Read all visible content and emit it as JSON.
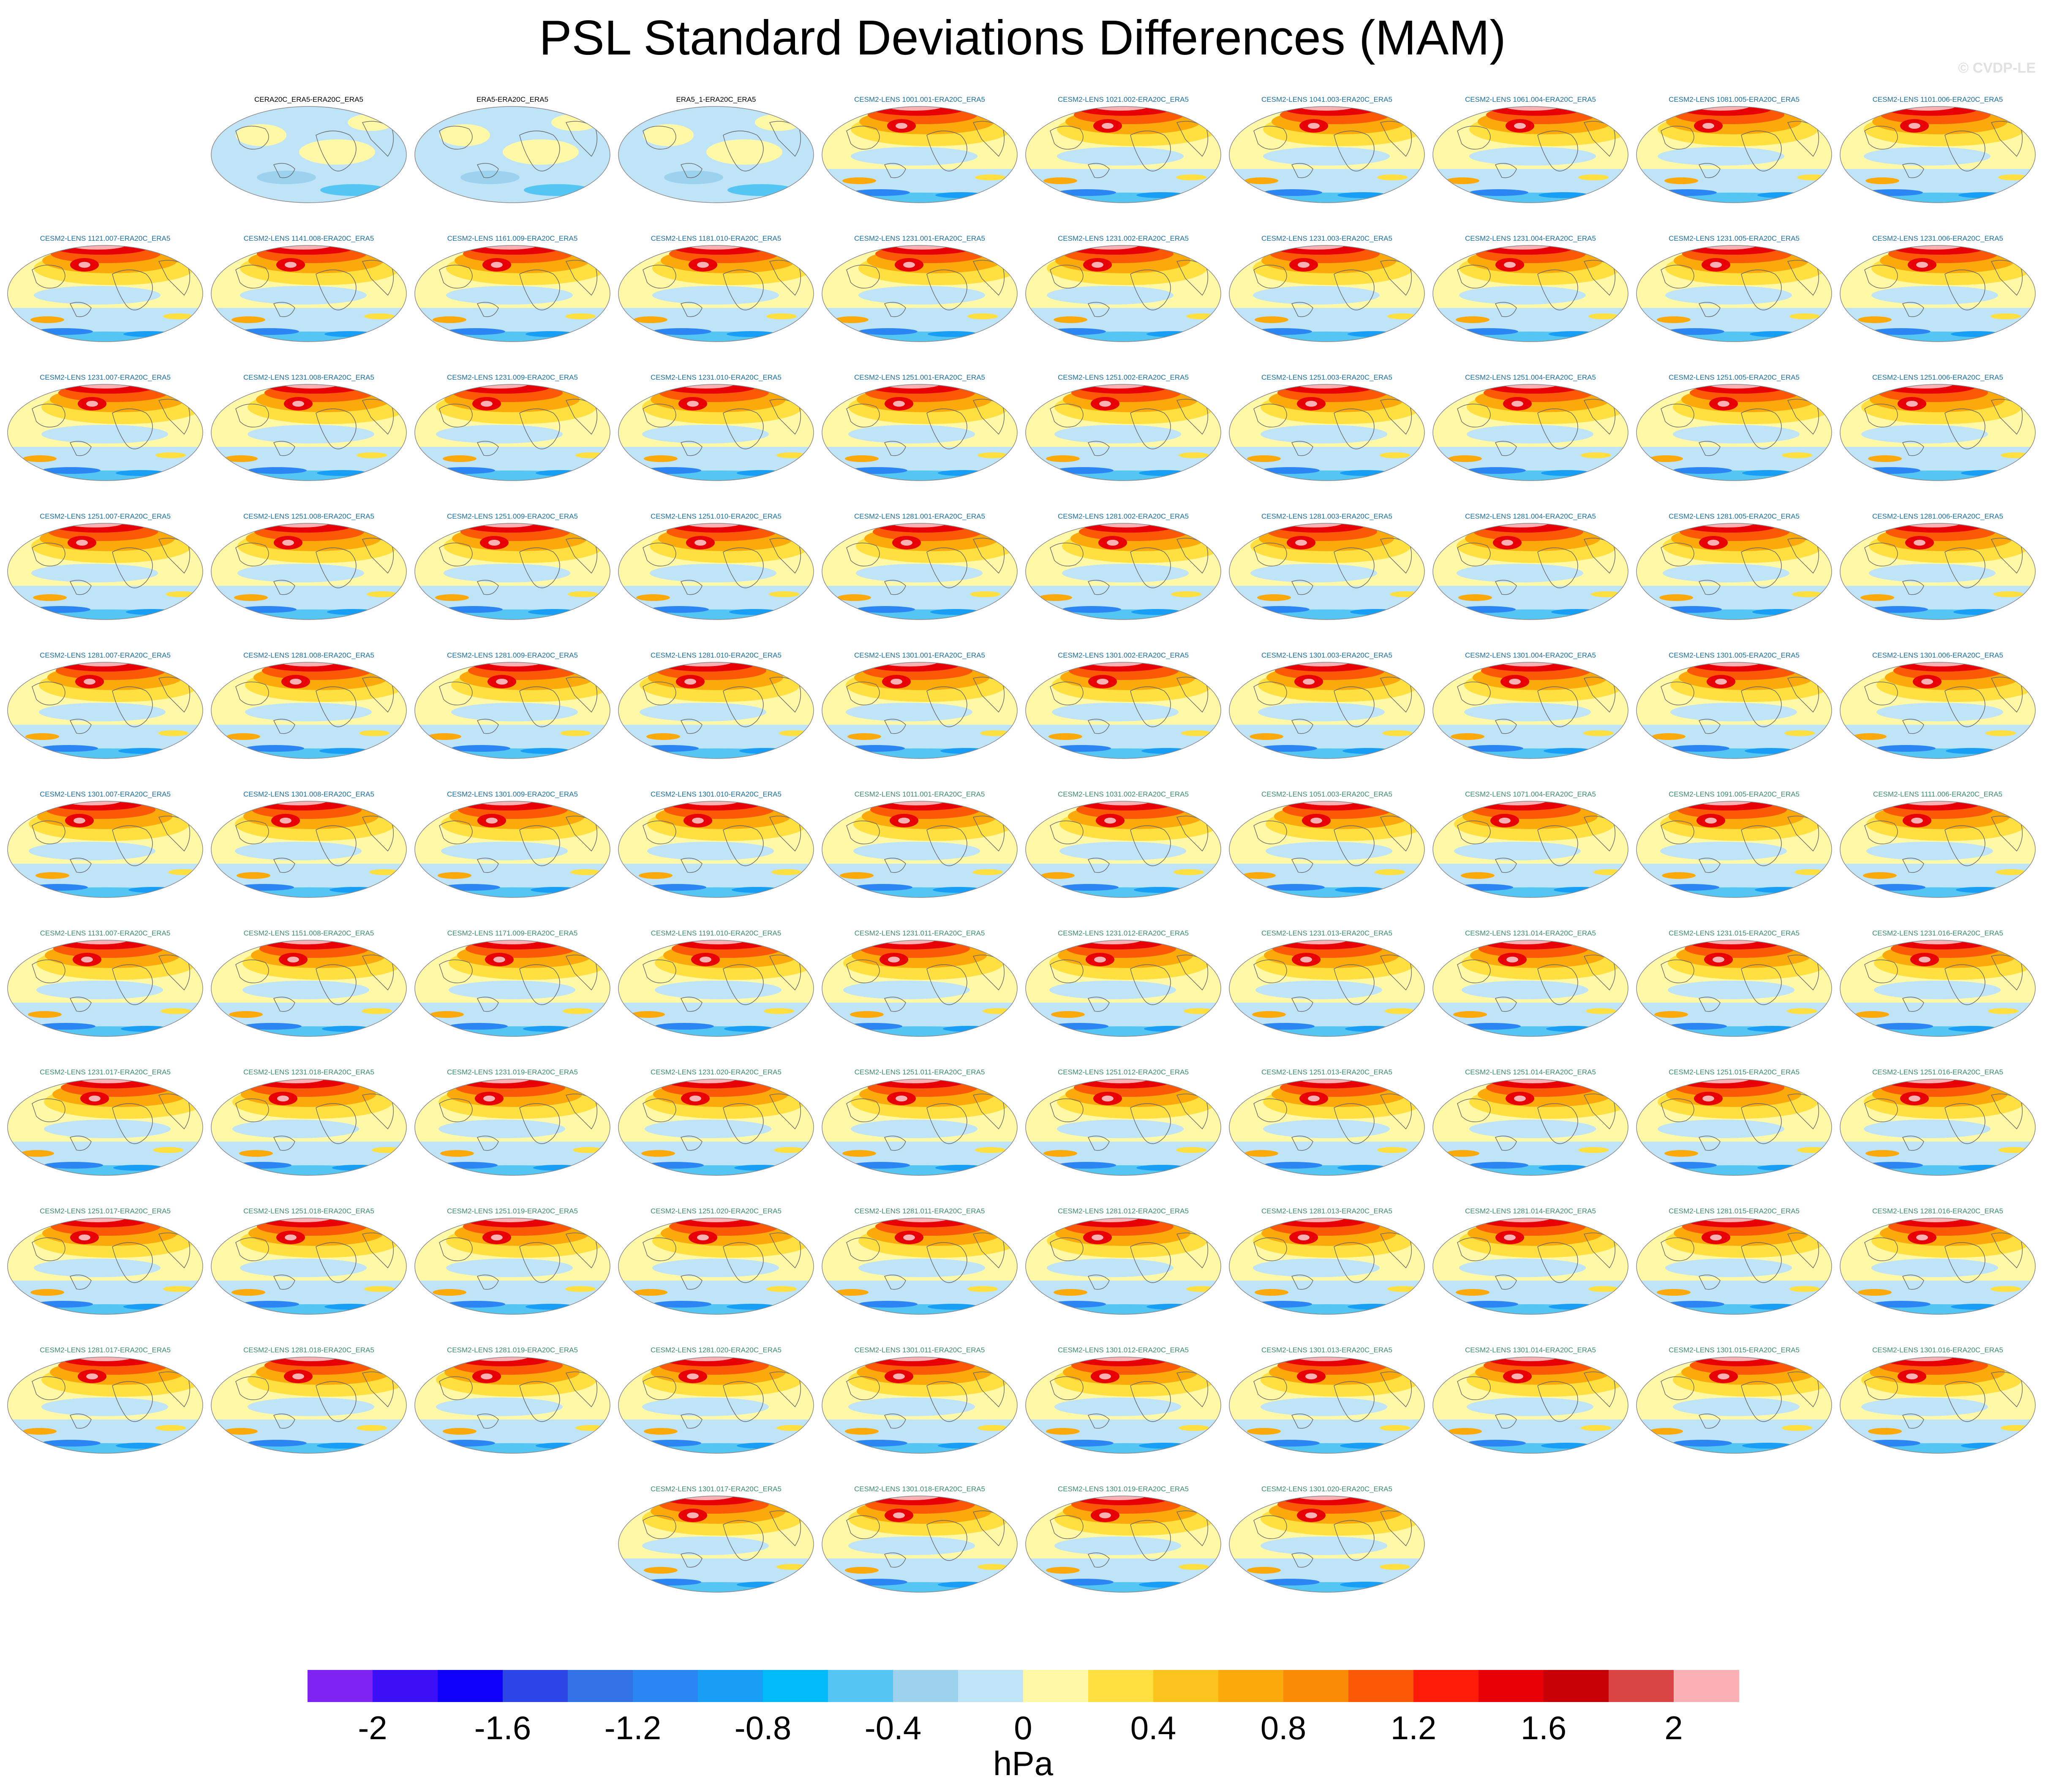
{
  "title": "PSL Standard Deviations Differences (MAM)",
  "watermark": "© CVDP-LE",
  "units": "hPa",
  "colorbar": {
    "colors": [
      "#7f23f2",
      "#3c0ff6",
      "#0e00fb",
      "#2c45e6",
      "#3271e6",
      "#2b86f3",
      "#199ef6",
      "#00baf9",
      "#55c6f4",
      "#9dd2ee",
      "#bfe3f7",
      "#fff8a6",
      "#ffe040",
      "#fdc420",
      "#fba90b",
      "#f98b07",
      "#fc5907",
      "#fe1c08",
      "#e70006",
      "#c70006",
      "#d94545",
      "#fbb1b3"
    ],
    "tick_labels": [
      "-2",
      "-1.6",
      "-1.2",
      "-0.8",
      "-0.4",
      "0",
      "0.4",
      "0.8",
      "1.2",
      "1.6",
      "2"
    ]
  },
  "panels": [
    {
      "label": "CERA20C_ERA5-ERA20C_ERA5",
      "group": "obs"
    },
    {
      "label": "ERA5-ERA20C_ERA5",
      "group": "obs"
    },
    {
      "label": "ERA5_1-ERA20C_ERA5",
      "group": "obs"
    },
    {
      "label": "CESM2-LENS 1001.001-ERA20C_ERA5",
      "group": "a"
    },
    {
      "label": "CESM2-LENS 1021.002-ERA20C_ERA5",
      "group": "a"
    },
    {
      "label": "CESM2-LENS 1041.003-ERA20C_ERA5",
      "group": "a"
    },
    {
      "label": "CESM2-LENS 1061.004-ERA20C_ERA5",
      "group": "a"
    },
    {
      "label": "CESM2-LENS 1081.005-ERA20C_ERA5",
      "group": "a"
    },
    {
      "label": "CESM2-LENS 1101.006-ERA20C_ERA5",
      "group": "a"
    },
    {
      "label": "CESM2-LENS 1121.007-ERA20C_ERA5",
      "group": "a"
    },
    {
      "label": "CESM2-LENS 1141.008-ERA20C_ERA5",
      "group": "a"
    },
    {
      "label": "CESM2-LENS 1161.009-ERA20C_ERA5",
      "group": "a"
    },
    {
      "label": "CESM2-LENS 1181.010-ERA20C_ERA5",
      "group": "a"
    },
    {
      "label": "CESM2-LENS 1231.001-ERA20C_ERA5",
      "group": "a"
    },
    {
      "label": "CESM2-LENS 1231.002-ERA20C_ERA5",
      "group": "a"
    },
    {
      "label": "CESM2-LENS 1231.003-ERA20C_ERA5",
      "group": "a"
    },
    {
      "label": "CESM2-LENS 1231.004-ERA20C_ERA5",
      "group": "a"
    },
    {
      "label": "CESM2-LENS 1231.005-ERA20C_ERA5",
      "group": "a"
    },
    {
      "label": "CESM2-LENS 1231.006-ERA20C_ERA5",
      "group": "a"
    },
    {
      "label": "CESM2-LENS 1231.007-ERA20C_ERA5",
      "group": "a"
    },
    {
      "label": "CESM2-LENS 1231.008-ERA20C_ERA5",
      "group": "a"
    },
    {
      "label": "CESM2-LENS 1231.009-ERA20C_ERA5",
      "group": "a"
    },
    {
      "label": "CESM2-LENS 1231.010-ERA20C_ERA5",
      "group": "a"
    },
    {
      "label": "CESM2-LENS 1251.001-ERA20C_ERA5",
      "group": "a"
    },
    {
      "label": "CESM2-LENS 1251.002-ERA20C_ERA5",
      "group": "a"
    },
    {
      "label": "CESM2-LENS 1251.003-ERA20C_ERA5",
      "group": "a"
    },
    {
      "label": "CESM2-LENS 1251.004-ERA20C_ERA5",
      "group": "a"
    },
    {
      "label": "CESM2-LENS 1251.005-ERA20C_ERA5",
      "group": "a"
    },
    {
      "label": "CESM2-LENS 1251.006-ERA20C_ERA5",
      "group": "a"
    },
    {
      "label": "CESM2-LENS 1251.007-ERA20C_ERA5",
      "group": "a"
    },
    {
      "label": "CESM2-LENS 1251.008-ERA20C_ERA5",
      "group": "a"
    },
    {
      "label": "CESM2-LENS 1251.009-ERA20C_ERA5",
      "group": "a"
    },
    {
      "label": "CESM2-LENS 1251.010-ERA20C_ERA5",
      "group": "a"
    },
    {
      "label": "CESM2-LENS 1281.001-ERA20C_ERA5",
      "group": "a"
    },
    {
      "label": "CESM2-LENS 1281.002-ERA20C_ERA5",
      "group": "a"
    },
    {
      "label": "CESM2-LENS 1281.003-ERA20C_ERA5",
      "group": "a"
    },
    {
      "label": "CESM2-LENS 1281.004-ERA20C_ERA5",
      "group": "a"
    },
    {
      "label": "CESM2-LENS 1281.005-ERA20C_ERA5",
      "group": "a"
    },
    {
      "label": "CESM2-LENS 1281.006-ERA20C_ERA5",
      "group": "a"
    },
    {
      "label": "CESM2-LENS 1281.007-ERA20C_ERA5",
      "group": "a"
    },
    {
      "label": "CESM2-LENS 1281.008-ERA20C_ERA5",
      "group": "a"
    },
    {
      "label": "CESM2-LENS 1281.009-ERA20C_ERA5",
      "group": "a"
    },
    {
      "label": "CESM2-LENS 1281.010-ERA20C_ERA5",
      "group": "a"
    },
    {
      "label": "CESM2-LENS 1301.001-ERA20C_ERA5",
      "group": "a"
    },
    {
      "label": "CESM2-LENS 1301.002-ERA20C_ERA5",
      "group": "a"
    },
    {
      "label": "CESM2-LENS 1301.003-ERA20C_ERA5",
      "group": "a"
    },
    {
      "label": "CESM2-LENS 1301.004-ERA20C_ERA5",
      "group": "a"
    },
    {
      "label": "CESM2-LENS 1301.005-ERA20C_ERA5",
      "group": "a"
    },
    {
      "label": "CESM2-LENS 1301.006-ERA20C_ERA5",
      "group": "a"
    },
    {
      "label": "CESM2-LENS 1301.007-ERA20C_ERA5",
      "group": "a"
    },
    {
      "label": "CESM2-LENS 1301.008-ERA20C_ERA5",
      "group": "a"
    },
    {
      "label": "CESM2-LENS 1301.009-ERA20C_ERA5",
      "group": "a"
    },
    {
      "label": "CESM2-LENS 1301.010-ERA20C_ERA5",
      "group": "a"
    },
    {
      "label": "CESM2-LENS 1011.001-ERA20C_ERA5",
      "group": "b"
    },
    {
      "label": "CESM2-LENS 1031.002-ERA20C_ERA5",
      "group": "b"
    },
    {
      "label": "CESM2-LENS 1051.003-ERA20C_ERA5",
      "group": "b"
    },
    {
      "label": "CESM2-LENS 1071.004-ERA20C_ERA5",
      "group": "b"
    },
    {
      "label": "CESM2-LENS 1091.005-ERA20C_ERA5",
      "group": "b"
    },
    {
      "label": "CESM2-LENS 1111.006-ERA20C_ERA5",
      "group": "b"
    },
    {
      "label": "CESM2-LENS 1131.007-ERA20C_ERA5",
      "group": "b"
    },
    {
      "label": "CESM2-LENS 1151.008-ERA20C_ERA5",
      "group": "b"
    },
    {
      "label": "CESM2-LENS 1171.009-ERA20C_ERA5",
      "group": "b"
    },
    {
      "label": "CESM2-LENS 1191.010-ERA20C_ERA5",
      "group": "b"
    },
    {
      "label": "CESM2-LENS 1231.011-ERA20C_ERA5",
      "group": "b"
    },
    {
      "label": "CESM2-LENS 1231.012-ERA20C_ERA5",
      "group": "b"
    },
    {
      "label": "CESM2-LENS 1231.013-ERA20C_ERA5",
      "group": "b"
    },
    {
      "label": "CESM2-LENS 1231.014-ERA20C_ERA5",
      "group": "b"
    },
    {
      "label": "CESM2-LENS 1231.015-ERA20C_ERA5",
      "group": "b"
    },
    {
      "label": "CESM2-LENS 1231.016-ERA20C_ERA5",
      "group": "b"
    },
    {
      "label": "CESM2-LENS 1231.017-ERA20C_ERA5",
      "group": "b"
    },
    {
      "label": "CESM2-LENS 1231.018-ERA20C_ERA5",
      "group": "b"
    },
    {
      "label": "CESM2-LENS 1231.019-ERA20C_ERA5",
      "group": "b"
    },
    {
      "label": "CESM2-LENS 1231.020-ERA20C_ERA5",
      "group": "b"
    },
    {
      "label": "CESM2-LENS 1251.011-ERA20C_ERA5",
      "group": "b"
    },
    {
      "label": "CESM2-LENS 1251.012-ERA20C_ERA5",
      "group": "b"
    },
    {
      "label": "CESM2-LENS 1251.013-ERA20C_ERA5",
      "group": "b"
    },
    {
      "label": "CESM2-LENS 1251.014-ERA20C_ERA5",
      "group": "b"
    },
    {
      "label": "CESM2-LENS 1251.015-ERA20C_ERA5",
      "group": "b"
    },
    {
      "label": "CESM2-LENS 1251.016-ERA20C_ERA5",
      "group": "b"
    },
    {
      "label": "CESM2-LENS 1251.017-ERA20C_ERA5",
      "group": "b"
    },
    {
      "label": "CESM2-LENS 1251.018-ERA20C_ERA5",
      "group": "b"
    },
    {
      "label": "CESM2-LENS 1251.019-ERA20C_ERA5",
      "group": "b"
    },
    {
      "label": "CESM2-LENS 1251.020-ERA20C_ERA5",
      "group": "b"
    },
    {
      "label": "CESM2-LENS 1281.011-ERA20C_ERA5",
      "group": "b"
    },
    {
      "label": "CESM2-LENS 1281.012-ERA20C_ERA5",
      "group": "b"
    },
    {
      "label": "CESM2-LENS 1281.013-ERA20C_ERA5",
      "group": "b"
    },
    {
      "label": "CESM2-LENS 1281.014-ERA20C_ERA5",
      "group": "b"
    },
    {
      "label": "CESM2-LENS 1281.015-ERA20C_ERA5",
      "group": "b"
    },
    {
      "label": "CESM2-LENS 1281.016-ERA20C_ERA5",
      "group": "b"
    },
    {
      "label": "CESM2-LENS 1281.017-ERA20C_ERA5",
      "group": "b"
    },
    {
      "label": "CESM2-LENS 1281.018-ERA20C_ERA5",
      "group": "b"
    },
    {
      "label": "CESM2-LENS 1281.019-ERA20C_ERA5",
      "group": "b"
    },
    {
      "label": "CESM2-LENS 1281.020-ERA20C_ERA5",
      "group": "b"
    },
    {
      "label": "CESM2-LENS 1301.011-ERA20C_ERA5",
      "group": "b"
    },
    {
      "label": "CESM2-LENS 1301.012-ERA20C_ERA5",
      "group": "b"
    },
    {
      "label": "CESM2-LENS 1301.013-ERA20C_ERA5",
      "group": "b"
    },
    {
      "label": "CESM2-LENS 1301.014-ERA20C_ERA5",
      "group": "b"
    },
    {
      "label": "CESM2-LENS 1301.015-ERA20C_ERA5",
      "group": "b"
    },
    {
      "label": "CESM2-LENS 1301.016-ERA20C_ERA5",
      "group": "b"
    },
    {
      "label": "CESM2-LENS 1301.017-ERA20C_ERA5",
      "group": "b"
    },
    {
      "label": "CESM2-LENS 1301.018-ERA20C_ERA5",
      "group": "b"
    },
    {
      "label": "CESM2-LENS 1301.019-ERA20C_ERA5",
      "group": "b"
    },
    {
      "label": "CESM2-LENS 1301.020-ERA20C_ERA5",
      "group": "b"
    }
  ],
  "label_colors": {
    "obs": "#000000",
    "a": "#1a6fa0",
    "b": "#3b8d6b"
  }
}
